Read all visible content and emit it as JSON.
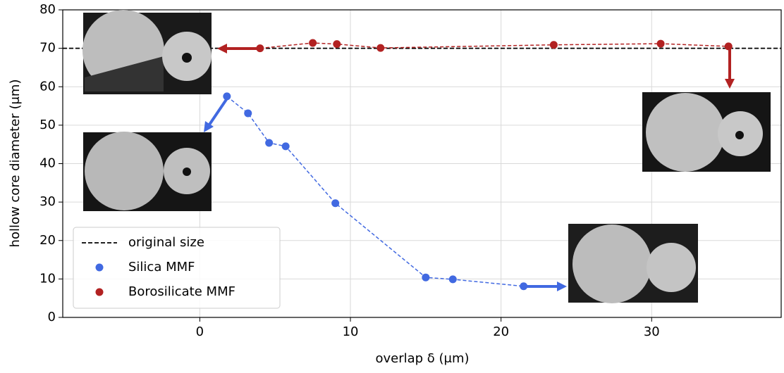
{
  "chart_data": {
    "type": "line",
    "xlabel": "overlap δ (μm)",
    "ylabel": "hollow core diameter (μm)",
    "xlim": [
      -9.1,
      38.6
    ],
    "ylim": [
      0,
      80
    ],
    "xticks": [
      0,
      10,
      20,
      30
    ],
    "yticks": [
      0,
      10,
      20,
      30,
      40,
      50,
      60,
      70,
      80
    ],
    "grid": true,
    "legend": "lower left",
    "reference_line": {
      "name": "original size",
      "value": 70,
      "color": "#000000"
    },
    "series": [
      {
        "name": "Silica MMF",
        "color": "#4169e1",
        "x": [
          1.8,
          3.2,
          4.6,
          5.7,
          9.0,
          15.0,
          16.8,
          21.5
        ],
        "values": [
          57.5,
          53.1,
          45.4,
          44.5,
          29.7,
          10.4,
          9.9,
          8.1
        ]
      },
      {
        "name": "Borosilicate MMF",
        "color": "#b22222",
        "x": [
          4.0,
          7.5,
          9.1,
          12.0,
          23.5,
          30.6,
          35.1
        ],
        "values": [
          70.0,
          71.4,
          71.1,
          70.1,
          70.9,
          71.2,
          70.5
        ]
      }
    ]
  }
}
